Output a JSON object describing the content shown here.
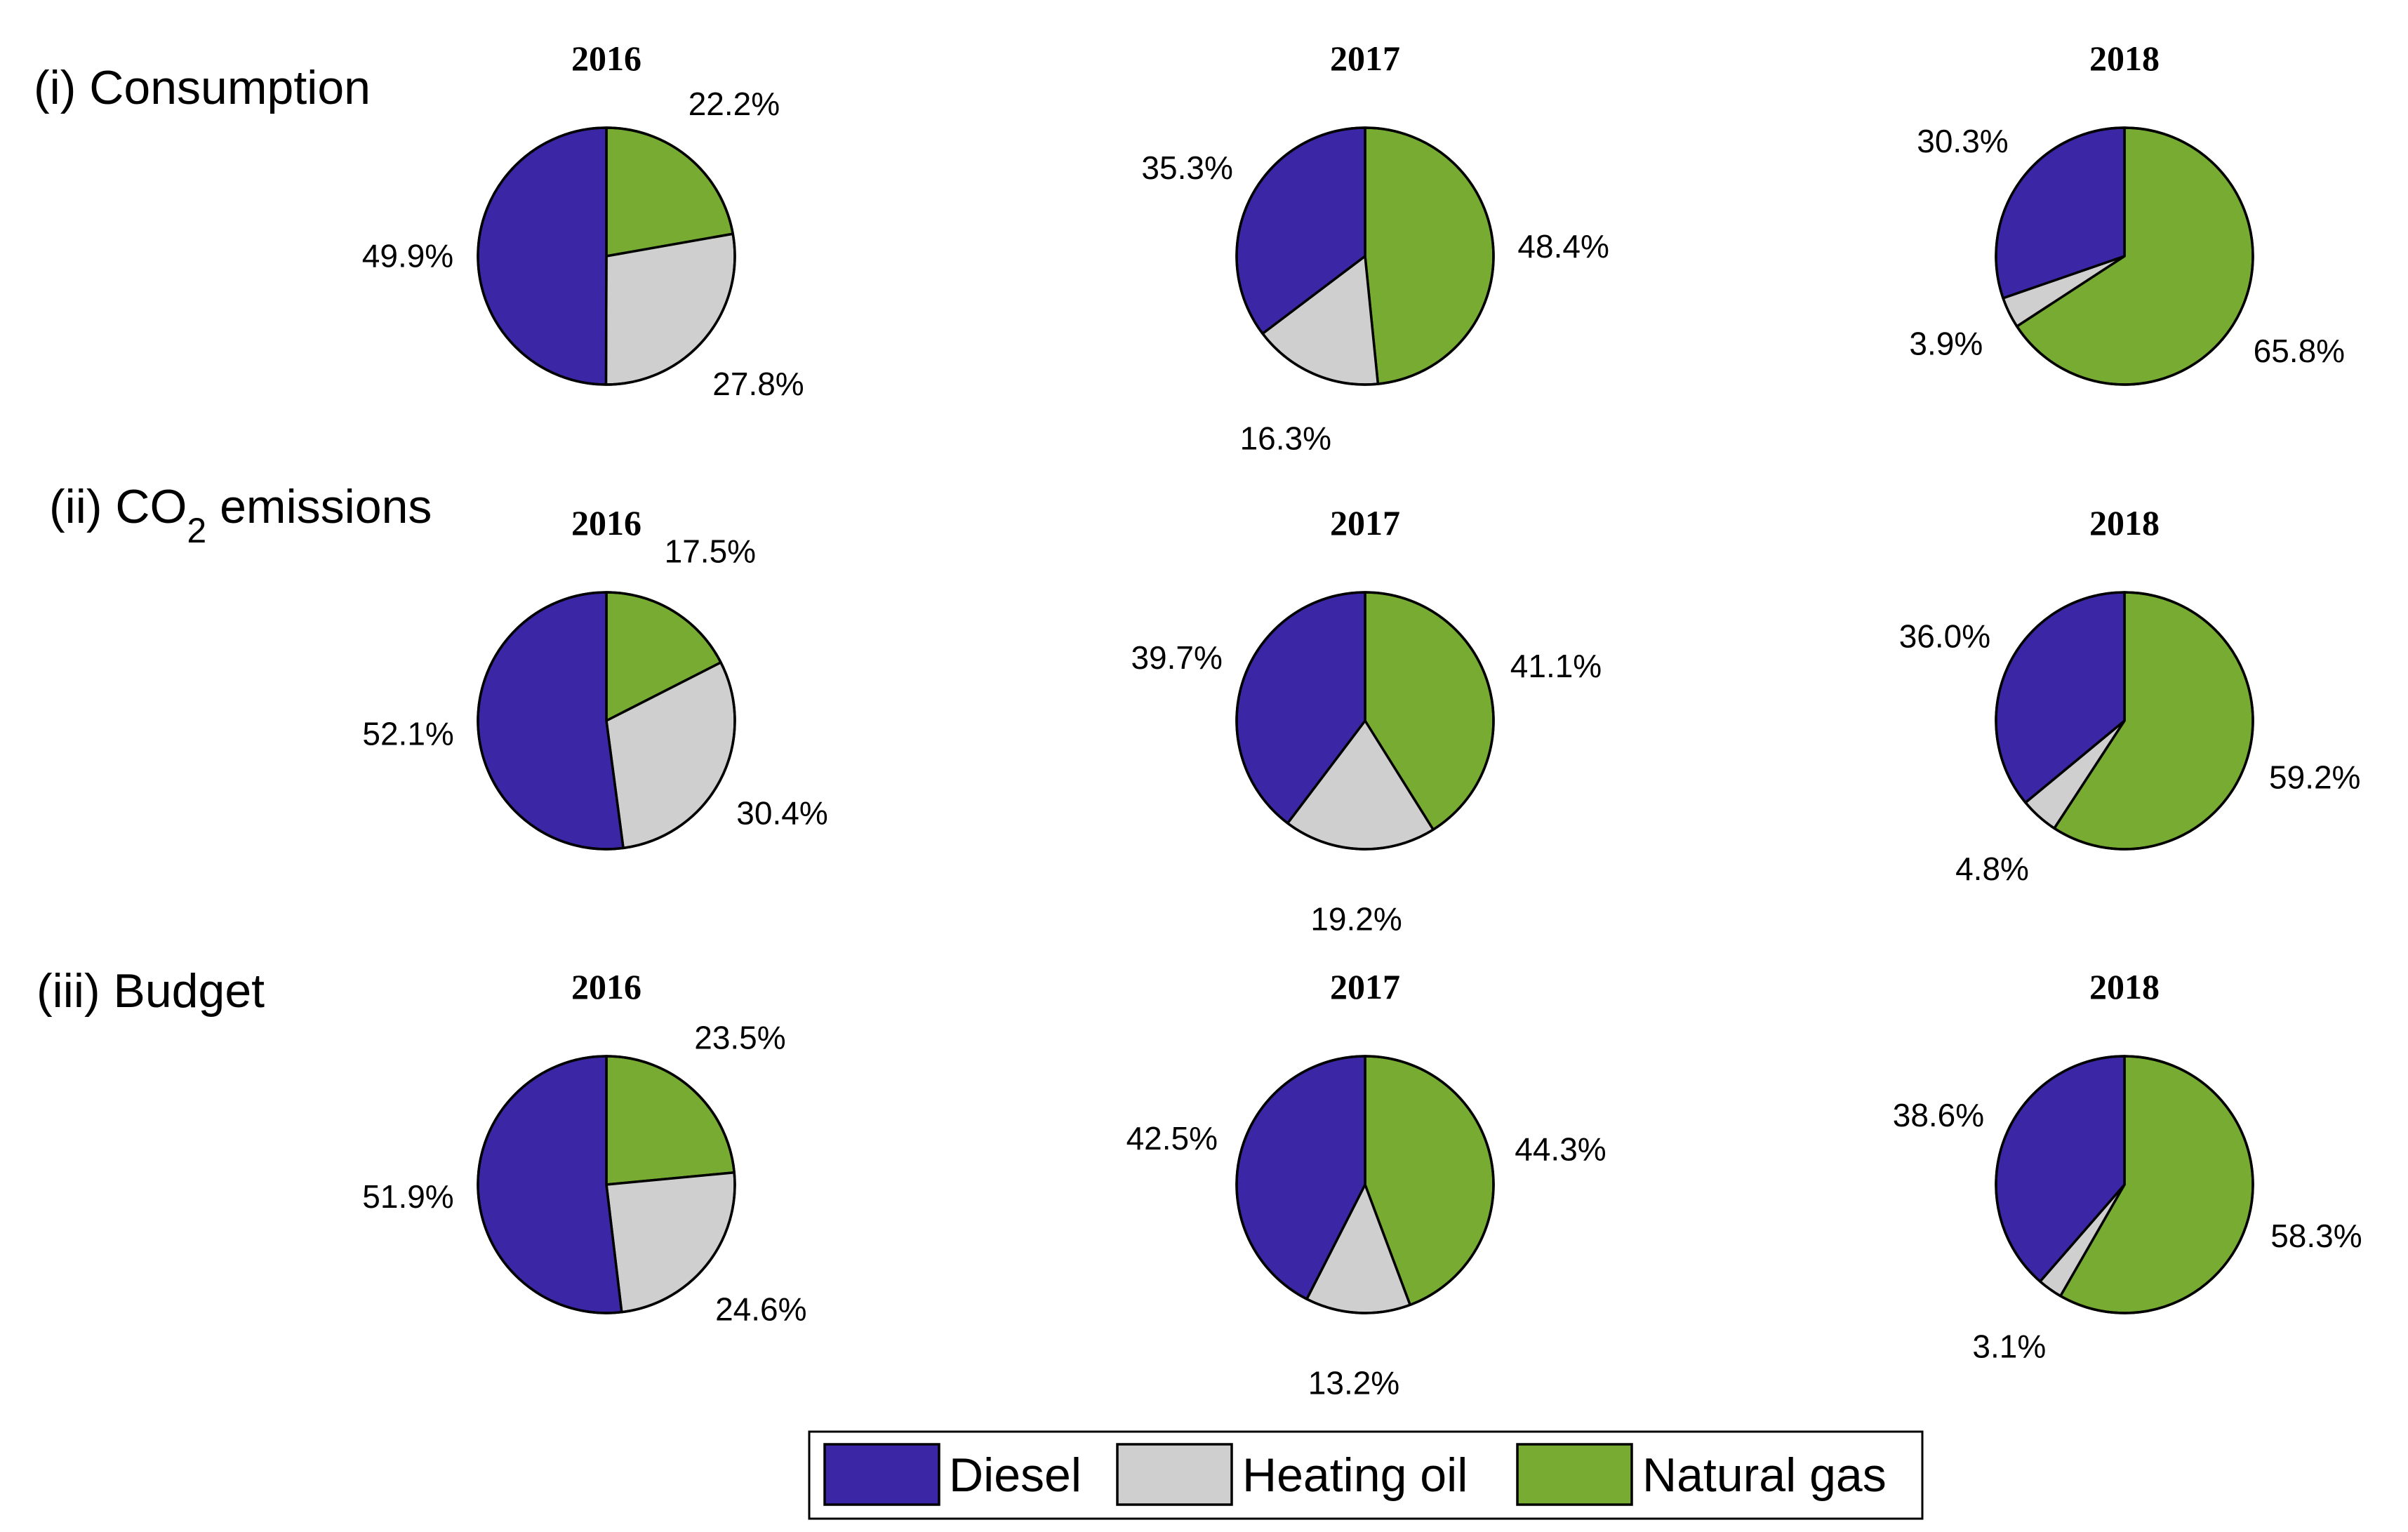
{
  "colors": {
    "Diesel": "#3b27a6",
    "Heating oil": "#cfcfcf",
    "Natural gas": "#77ab32"
  },
  "legend": {
    "items": [
      "Diesel",
      "Heating oil",
      "Natural gas"
    ],
    "placement": "bottom-center"
  },
  "chart_data": [
    {
      "type": "pie",
      "row_title": "(i) Consumption",
      "title": "2016",
      "labels": [
        "Diesel",
        "Heating oil",
        "Natural gas"
      ],
      "values": [
        49.9,
        27.8,
        22.2
      ],
      "value_labels": [
        "49.9%",
        "27.8%",
        "22.2%"
      ]
    },
    {
      "type": "pie",
      "title": "2017",
      "labels": [
        "Diesel",
        "Heating oil",
        "Natural gas"
      ],
      "values": [
        35.3,
        16.3,
        48.4
      ],
      "value_labels": [
        "35.3%",
        "16.3%",
        "48.4%"
      ]
    },
    {
      "type": "pie",
      "title": "2018",
      "labels": [
        "Diesel",
        "Heating oil",
        "Natural gas"
      ],
      "values": [
        30.3,
        3.9,
        65.8
      ],
      "value_labels": [
        "30.3%",
        "3.9%",
        "65.8%"
      ]
    },
    {
      "type": "pie",
      "row_title": "(ii) CO",
      "row_title_subscript": "2",
      "row_title_suffix": " emissions",
      "title": "2016",
      "labels": [
        "Diesel",
        "Heating oil",
        "Natural gas"
      ],
      "values": [
        52.1,
        30.4,
        17.5
      ],
      "value_labels": [
        "52.1%",
        "30.4%",
        "17.5%"
      ]
    },
    {
      "type": "pie",
      "title": "2017",
      "labels": [
        "Diesel",
        "Heating oil",
        "Natural gas"
      ],
      "values": [
        39.7,
        19.2,
        41.1
      ],
      "value_labels": [
        "39.7%",
        "19.2%",
        "41.1%"
      ]
    },
    {
      "type": "pie",
      "title": "2018",
      "labels": [
        "Diesel",
        "Heating oil",
        "Natural gas"
      ],
      "values": [
        36.0,
        4.8,
        59.2
      ],
      "value_labels": [
        "36.0%",
        "4.8%",
        "59.2%"
      ]
    },
    {
      "type": "pie",
      "row_title": "(iii) Budget",
      "title": "2016",
      "labels": [
        "Diesel",
        "Heating oil",
        "Natural gas"
      ],
      "values": [
        51.9,
        24.6,
        23.5
      ],
      "value_labels": [
        "51.9%",
        "24.6%",
        "23.5%"
      ]
    },
    {
      "type": "pie",
      "title": "2017",
      "labels": [
        "Diesel",
        "Heating oil",
        "Natural gas"
      ],
      "values": [
        42.5,
        13.2,
        44.3
      ],
      "value_labels": [
        "42.5%",
        "13.2%",
        "44.3%"
      ]
    },
    {
      "type": "pie",
      "title": "2018",
      "labels": [
        "Diesel",
        "Heating oil",
        "Natural gas"
      ],
      "values": [
        38.6,
        3.1,
        58.3
      ],
      "value_labels": [
        "38.6%",
        "3.1%",
        "58.3%"
      ]
    }
  ]
}
